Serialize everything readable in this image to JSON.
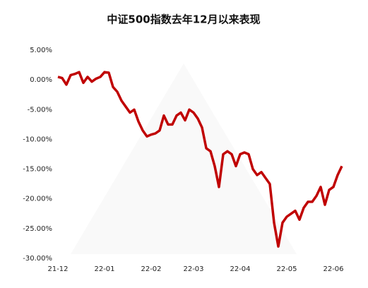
{
  "chart_data": {
    "type": "line",
    "title": "中证500指数去年12月以来表现",
    "x": [
      0,
      1,
      2,
      3,
      4,
      5,
      6,
      7,
      8,
      9,
      10,
      11,
      12,
      13,
      14,
      15,
      16,
      17,
      18,
      19,
      20,
      21,
      22,
      23,
      24,
      25,
      26,
      27,
      28,
      29,
      30,
      31,
      32,
      33,
      34,
      35,
      36,
      37,
      38,
      39,
      40,
      41,
      42,
      43,
      44,
      45,
      46,
      47,
      48,
      49,
      50,
      51,
      52,
      53,
      54,
      55,
      56,
      57,
      58,
      59,
      60,
      61,
      62,
      63,
      64,
      65,
      66,
      67
    ],
    "series": [
      {
        "name": "中证500",
        "color": "#c00000",
        "values": [
          0.5,
          0.3,
          -0.8,
          0.8,
          1.0,
          1.3,
          -0.5,
          0.5,
          -0.3,
          0.2,
          0.5,
          1.3,
          1.2,
          -1.2,
          -2.0,
          -3.5,
          -4.5,
          -5.5,
          -5.0,
          -7.0,
          -8.5,
          -9.5,
          -9.2,
          -9.0,
          -8.5,
          -6.0,
          -7.5,
          -7.5,
          -6.0,
          -5.5,
          -6.8,
          -5.0,
          -5.5,
          -6.5,
          -8.0,
          -11.5,
          -12.0,
          -14.5,
          -18.0,
          -12.5,
          -12.0,
          -12.5,
          -14.5,
          -12.5,
          -12.2,
          -12.5,
          -15.0,
          -16.0,
          -15.5,
          -16.5,
          -17.5,
          -24.0,
          -28.0,
          -24.0,
          -23.0,
          -22.5,
          -22.0,
          -23.5,
          -21.5,
          -20.5,
          -20.5,
          -19.5,
          -18.0,
          -21.0,
          -18.5,
          -18.0,
          -16.0,
          -14.5
        ]
      }
    ],
    "xlim": [
      0,
      67
    ],
    "xticks": [
      {
        "value": 0,
        "label": "21-12"
      },
      {
        "value": 11,
        "label": "22-01"
      },
      {
        "value": 22,
        "label": "22-02"
      },
      {
        "value": 32,
        "label": "22-03"
      },
      {
        "value": 43,
        "label": "22-04"
      },
      {
        "value": 54,
        "label": "22-05"
      },
      {
        "value": 65,
        "label": "22-06"
      }
    ],
    "ylim": [
      -30,
      5
    ],
    "yticks": [
      {
        "value": 5,
        "label": "5.00%"
      },
      {
        "value": 0,
        "label": "0.00%"
      },
      {
        "value": -5,
        "label": "-5.00%"
      },
      {
        "value": -10,
        "label": "-10.00%"
      },
      {
        "value": -15,
        "label": "-15.00%"
      },
      {
        "value": -20,
        "label": "-20.00%"
      },
      {
        "value": -25,
        "label": "-25.00%"
      },
      {
        "value": -30,
        "label": "-30.00%"
      }
    ]
  }
}
